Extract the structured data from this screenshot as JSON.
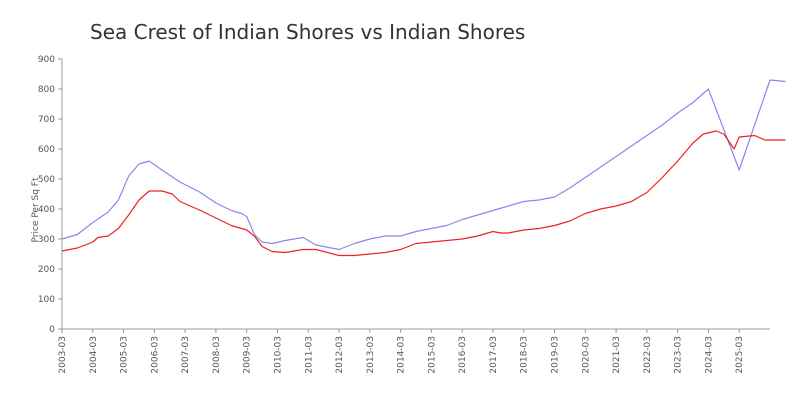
{
  "chart_data": {
    "type": "line",
    "title": "Sea Crest of Indian Shores vs Indian Shores",
    "ylabel": "Price Per Sq Ft",
    "xlabel": "",
    "ylim": [
      0,
      900
    ],
    "yticks": [
      0,
      100,
      200,
      300,
      400,
      500,
      600,
      700,
      800,
      900
    ],
    "xlim": [
      "2003-03",
      "2026-03"
    ],
    "xticks": [
      "2003-03",
      "2004-03",
      "2005-03",
      "2006-03",
      "2007-03",
      "2008-03",
      "2009-03",
      "2010-03",
      "2011-03",
      "2012-03",
      "2013-03",
      "2014-03",
      "2015-03",
      "2016-03",
      "2017-03",
      "2018-03",
      "2019-03",
      "2020-03",
      "2021-03",
      "2022-03",
      "2023-03",
      "2024-03",
      "2025-03"
    ],
    "grid": false,
    "legend": "none",
    "series": [
      {
        "color": "#8888ee",
        "points": [
          [
            "2003-03",
            300
          ],
          [
            "2003-09",
            315
          ],
          [
            "2004-03",
            355
          ],
          [
            "2004-09",
            390
          ],
          [
            "2005-01",
            430
          ],
          [
            "2005-05",
            510
          ],
          [
            "2005-09",
            550
          ],
          [
            "2006-01",
            560
          ],
          [
            "2006-06",
            530
          ],
          [
            "2007-01",
            490
          ],
          [
            "2007-09",
            455
          ],
          [
            "2008-03",
            420
          ],
          [
            "2008-09",
            395
          ],
          [
            "2009-01",
            385
          ],
          [
            "2009-03",
            375
          ],
          [
            "2009-06",
            315
          ],
          [
            "2009-09",
            290
          ],
          [
            "2010-01",
            285
          ],
          [
            "2010-06",
            295
          ],
          [
            "2011-01",
            305
          ],
          [
            "2011-06",
            280
          ],
          [
            "2012-03",
            265
          ],
          [
            "2012-09",
            285
          ],
          [
            "2013-03",
            300
          ],
          [
            "2013-09",
            310
          ],
          [
            "2014-03",
            310
          ],
          [
            "2014-09",
            325
          ],
          [
            "2015-03",
            335
          ],
          [
            "2015-09",
            345
          ],
          [
            "2016-03",
            365
          ],
          [
            "2016-09",
            380
          ],
          [
            "2017-03",
            395
          ],
          [
            "2017-09",
            410
          ],
          [
            "2018-03",
            425
          ],
          [
            "2018-09",
            430
          ],
          [
            "2019-03",
            440
          ],
          [
            "2019-09",
            470
          ],
          [
            "2020-03",
            505
          ],
          [
            "2020-09",
            540
          ],
          [
            "2021-03",
            575
          ],
          [
            "2021-09",
            610
          ],
          [
            "2022-03",
            645
          ],
          [
            "2022-09",
            680
          ],
          [
            "2023-03",
            720
          ],
          [
            "2023-09",
            755
          ],
          [
            "2024-03",
            800
          ],
          [
            "2025-03",
            530
          ],
          [
            "2026-03",
            830
          ],
          [
            "2026-09",
            825
          ]
        ]
      },
      {
        "color": "#ee2222",
        "points": [
          [
            "2003-03",
            260
          ],
          [
            "2003-09",
            270
          ],
          [
            "2004-03",
            290
          ],
          [
            "2004-05",
            305
          ],
          [
            "2004-09",
            310
          ],
          [
            "2005-01",
            335
          ],
          [
            "2005-05",
            380
          ],
          [
            "2005-09",
            430
          ],
          [
            "2006-01",
            460
          ],
          [
            "2006-06",
            460
          ],
          [
            "2006-10",
            450
          ],
          [
            "2007-01",
            425
          ],
          [
            "2007-09",
            395
          ],
          [
            "2008-03",
            370
          ],
          [
            "2008-09",
            345
          ],
          [
            "2009-03",
            330
          ],
          [
            "2009-06",
            310
          ],
          [
            "2009-09",
            275
          ],
          [
            "2010-01",
            258
          ],
          [
            "2010-06",
            255
          ],
          [
            "2011-01",
            265
          ],
          [
            "2011-06",
            265
          ],
          [
            "2012-03",
            245
          ],
          [
            "2012-09",
            245
          ],
          [
            "2013-03",
            250
          ],
          [
            "2013-09",
            255
          ],
          [
            "2014-03",
            265
          ],
          [
            "2014-06",
            275
          ],
          [
            "2014-09",
            285
          ],
          [
            "2015-03",
            290
          ],
          [
            "2015-09",
            295
          ],
          [
            "2016-03",
            300
          ],
          [
            "2016-09",
            310
          ],
          [
            "2017-03",
            325
          ],
          [
            "2017-06",
            320
          ],
          [
            "2017-09",
            320
          ],
          [
            "2018-03",
            330
          ],
          [
            "2018-09",
            335
          ],
          [
            "2019-03",
            345
          ],
          [
            "2019-09",
            360
          ],
          [
            "2020-03",
            385
          ],
          [
            "2020-09",
            400
          ],
          [
            "2021-03",
            410
          ],
          [
            "2021-09",
            425
          ],
          [
            "2022-03",
            455
          ],
          [
            "2022-09",
            505
          ],
          [
            "2023-03",
            560
          ],
          [
            "2023-09",
            620
          ],
          [
            "2024-01",
            650
          ],
          [
            "2024-06",
            660
          ],
          [
            "2024-09",
            650
          ],
          [
            "2025-01",
            600
          ],
          [
            "2025-03",
            640
          ],
          [
            "2025-09",
            645
          ],
          [
            "2026-01",
            630
          ],
          [
            "2026-06",
            630
          ],
          [
            "2026-09",
            630
          ]
        ]
      }
    ]
  }
}
